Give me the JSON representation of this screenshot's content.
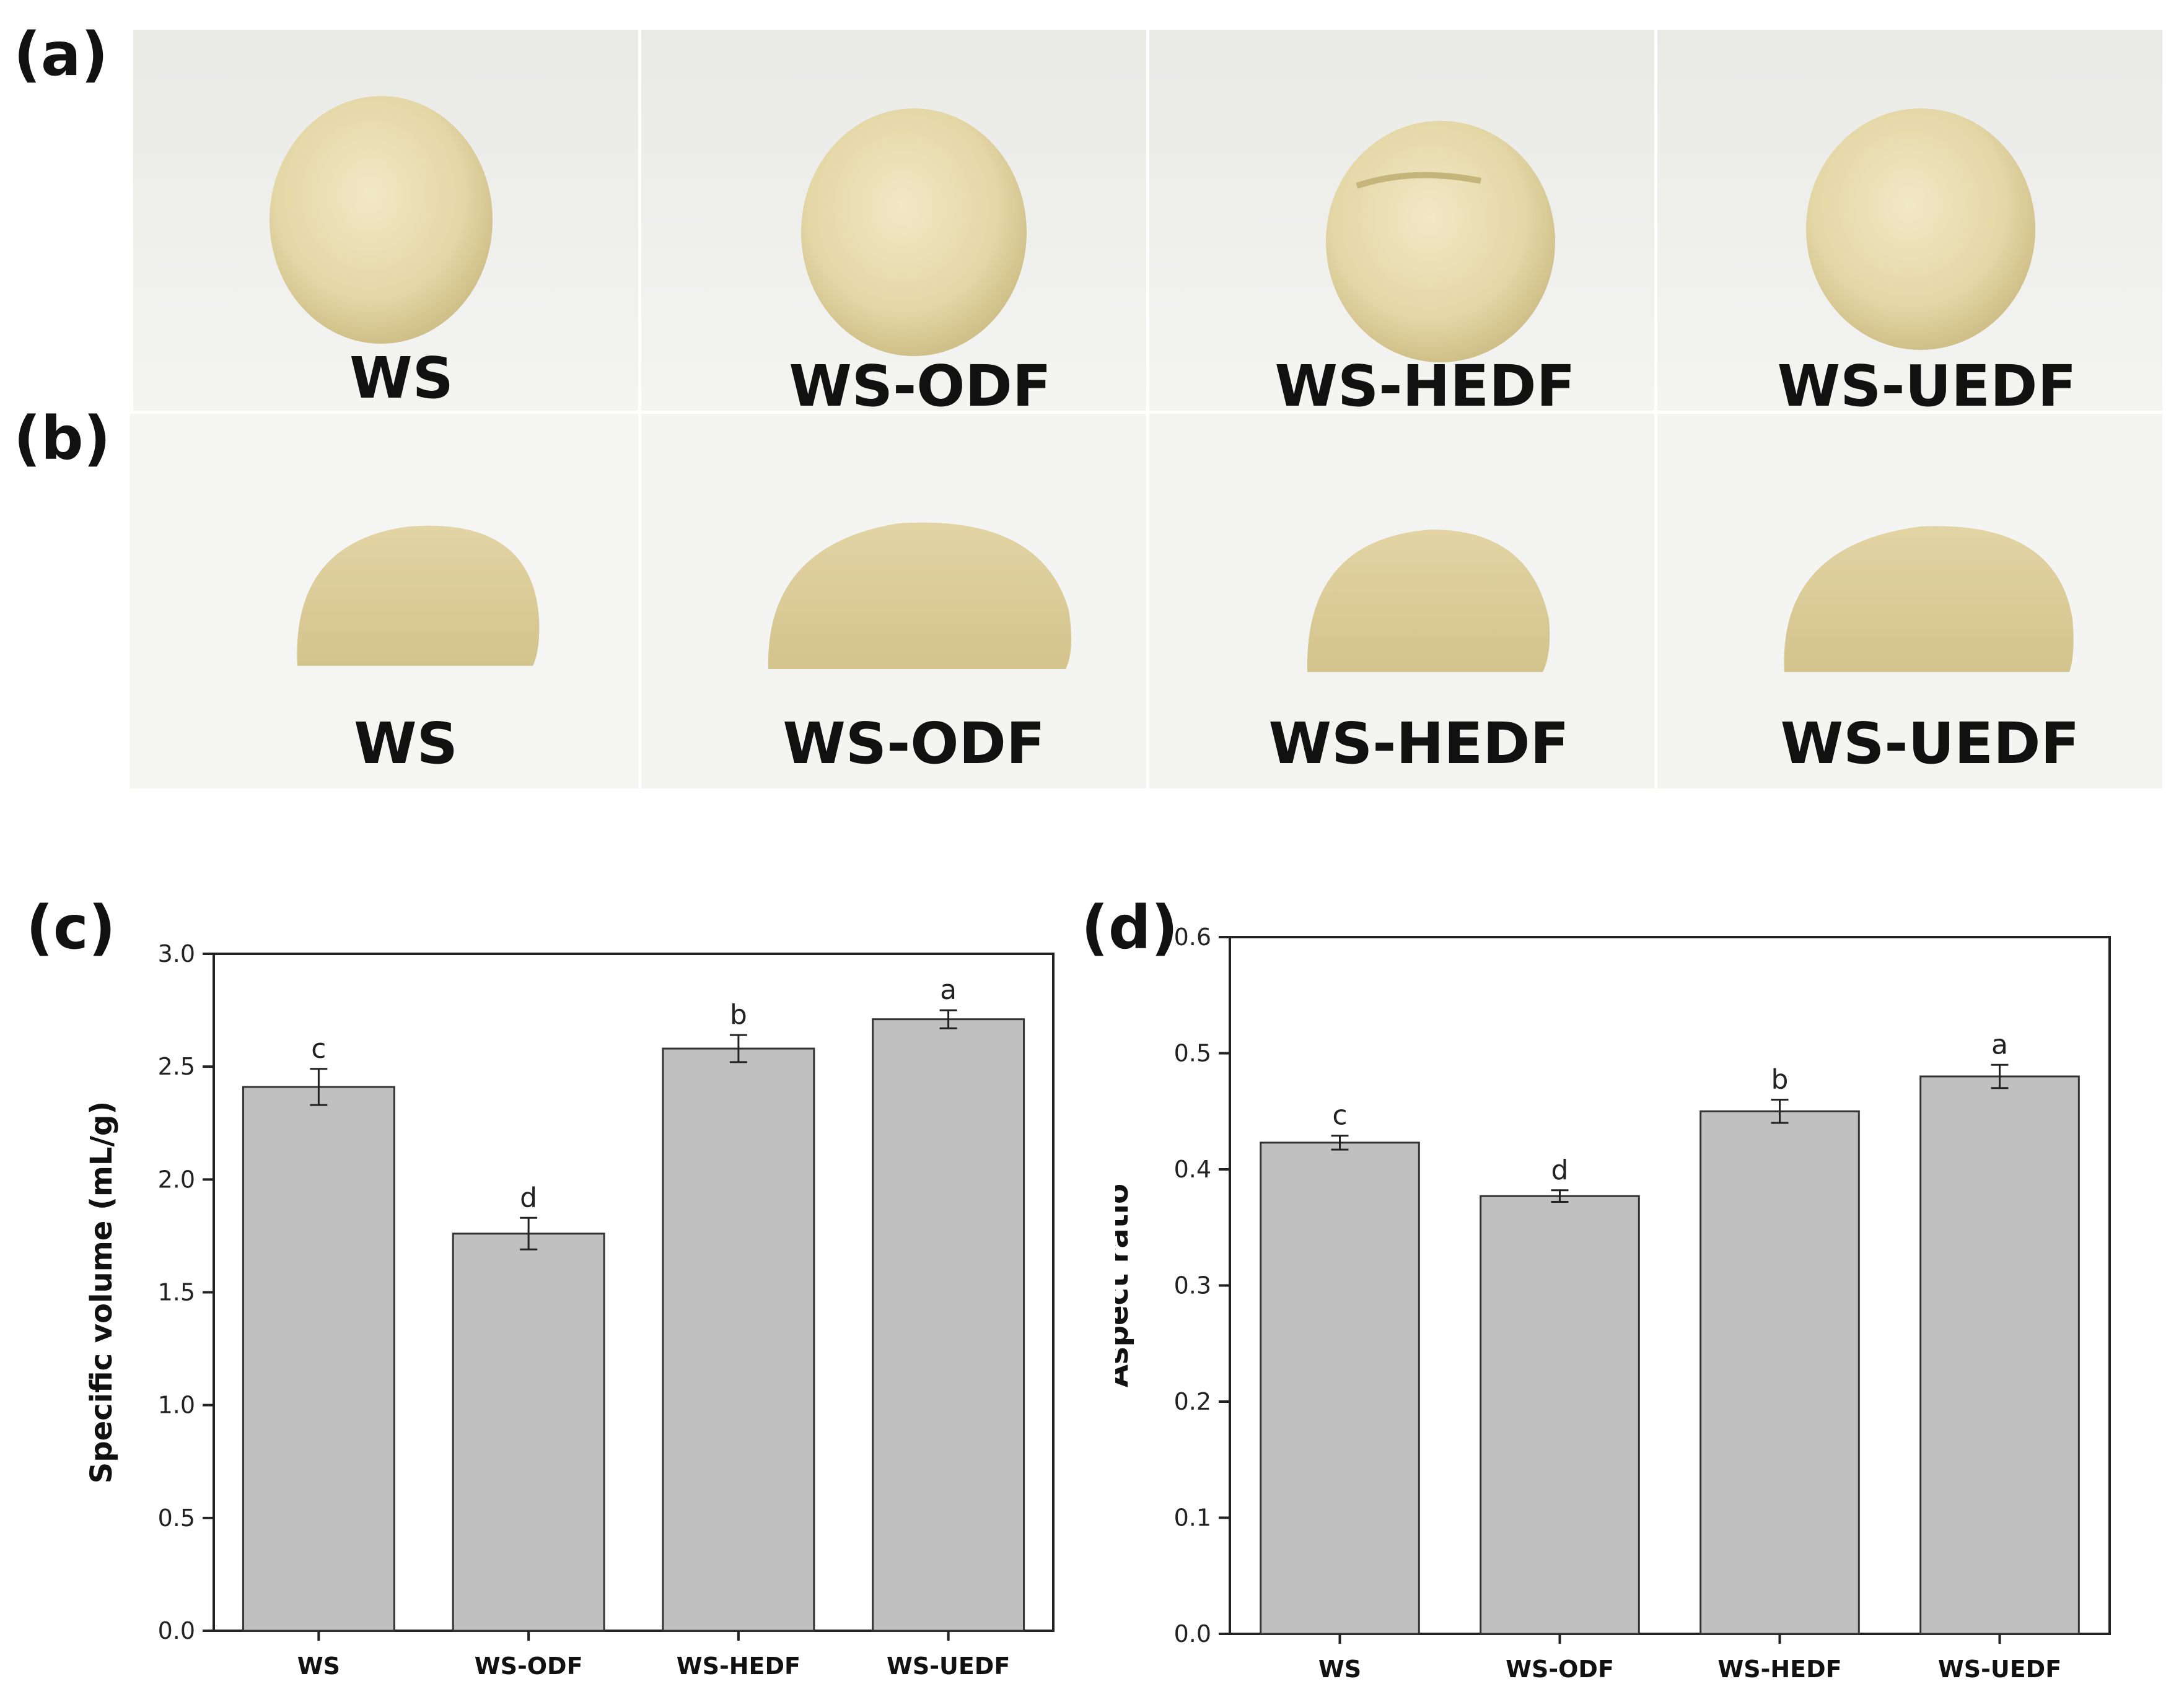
{
  "panels": {
    "a": "(a)",
    "b": "(b)",
    "c": "(c)",
    "d": "(d)"
  },
  "photos": {
    "row_a_captions": [
      "WS",
      "WS-ODF",
      "WS-HEDF",
      "WS-UEDF"
    ],
    "row_b_captions": [
      "WS",
      "WS-ODF",
      "WS-HEDF",
      "WS-UEDF"
    ]
  },
  "colors": {
    "bar_fill": "#c0c0c0",
    "bar_stroke": "#333333",
    "axis": "#222222",
    "photo_bg": "#ededeb",
    "bun_top": "#eadfb6",
    "bun_crumb": "#dccd98"
  },
  "chart_data": [
    {
      "type": "bar",
      "panel": "c",
      "categories": [
        "WS",
        "WS-ODF",
        "WS-HEDF",
        "WS-UEDF"
      ],
      "values": [
        2.41,
        1.76,
        2.58,
        2.71
      ],
      "errors": [
        0.08,
        0.07,
        0.06,
        0.04
      ],
      "significance": [
        "c",
        "d",
        "b",
        "a"
      ],
      "xlabel": "",
      "ylabel": "Specific volume (mL/g)",
      "ylim": [
        0,
        3.0
      ],
      "yticks": [
        "0.0",
        "0.5",
        "1.0",
        "1.5",
        "2.0",
        "2.5",
        "3.0"
      ]
    },
    {
      "type": "bar",
      "panel": "d",
      "categories": [
        "WS",
        "WS-ODF",
        "WS-HEDF",
        "WS-UEDF"
      ],
      "values": [
        0.423,
        0.377,
        0.45,
        0.48
      ],
      "errors": [
        0.006,
        0.005,
        0.01,
        0.01
      ],
      "significance": [
        "c",
        "d",
        "b",
        "a"
      ],
      "xlabel": "",
      "ylabel": "Aspect ratio",
      "ylim": [
        0,
        0.6
      ],
      "yticks": [
        "0.0",
        "0.1",
        "0.2",
        "0.3",
        "0.4",
        "0.5",
        "0.6"
      ]
    }
  ]
}
